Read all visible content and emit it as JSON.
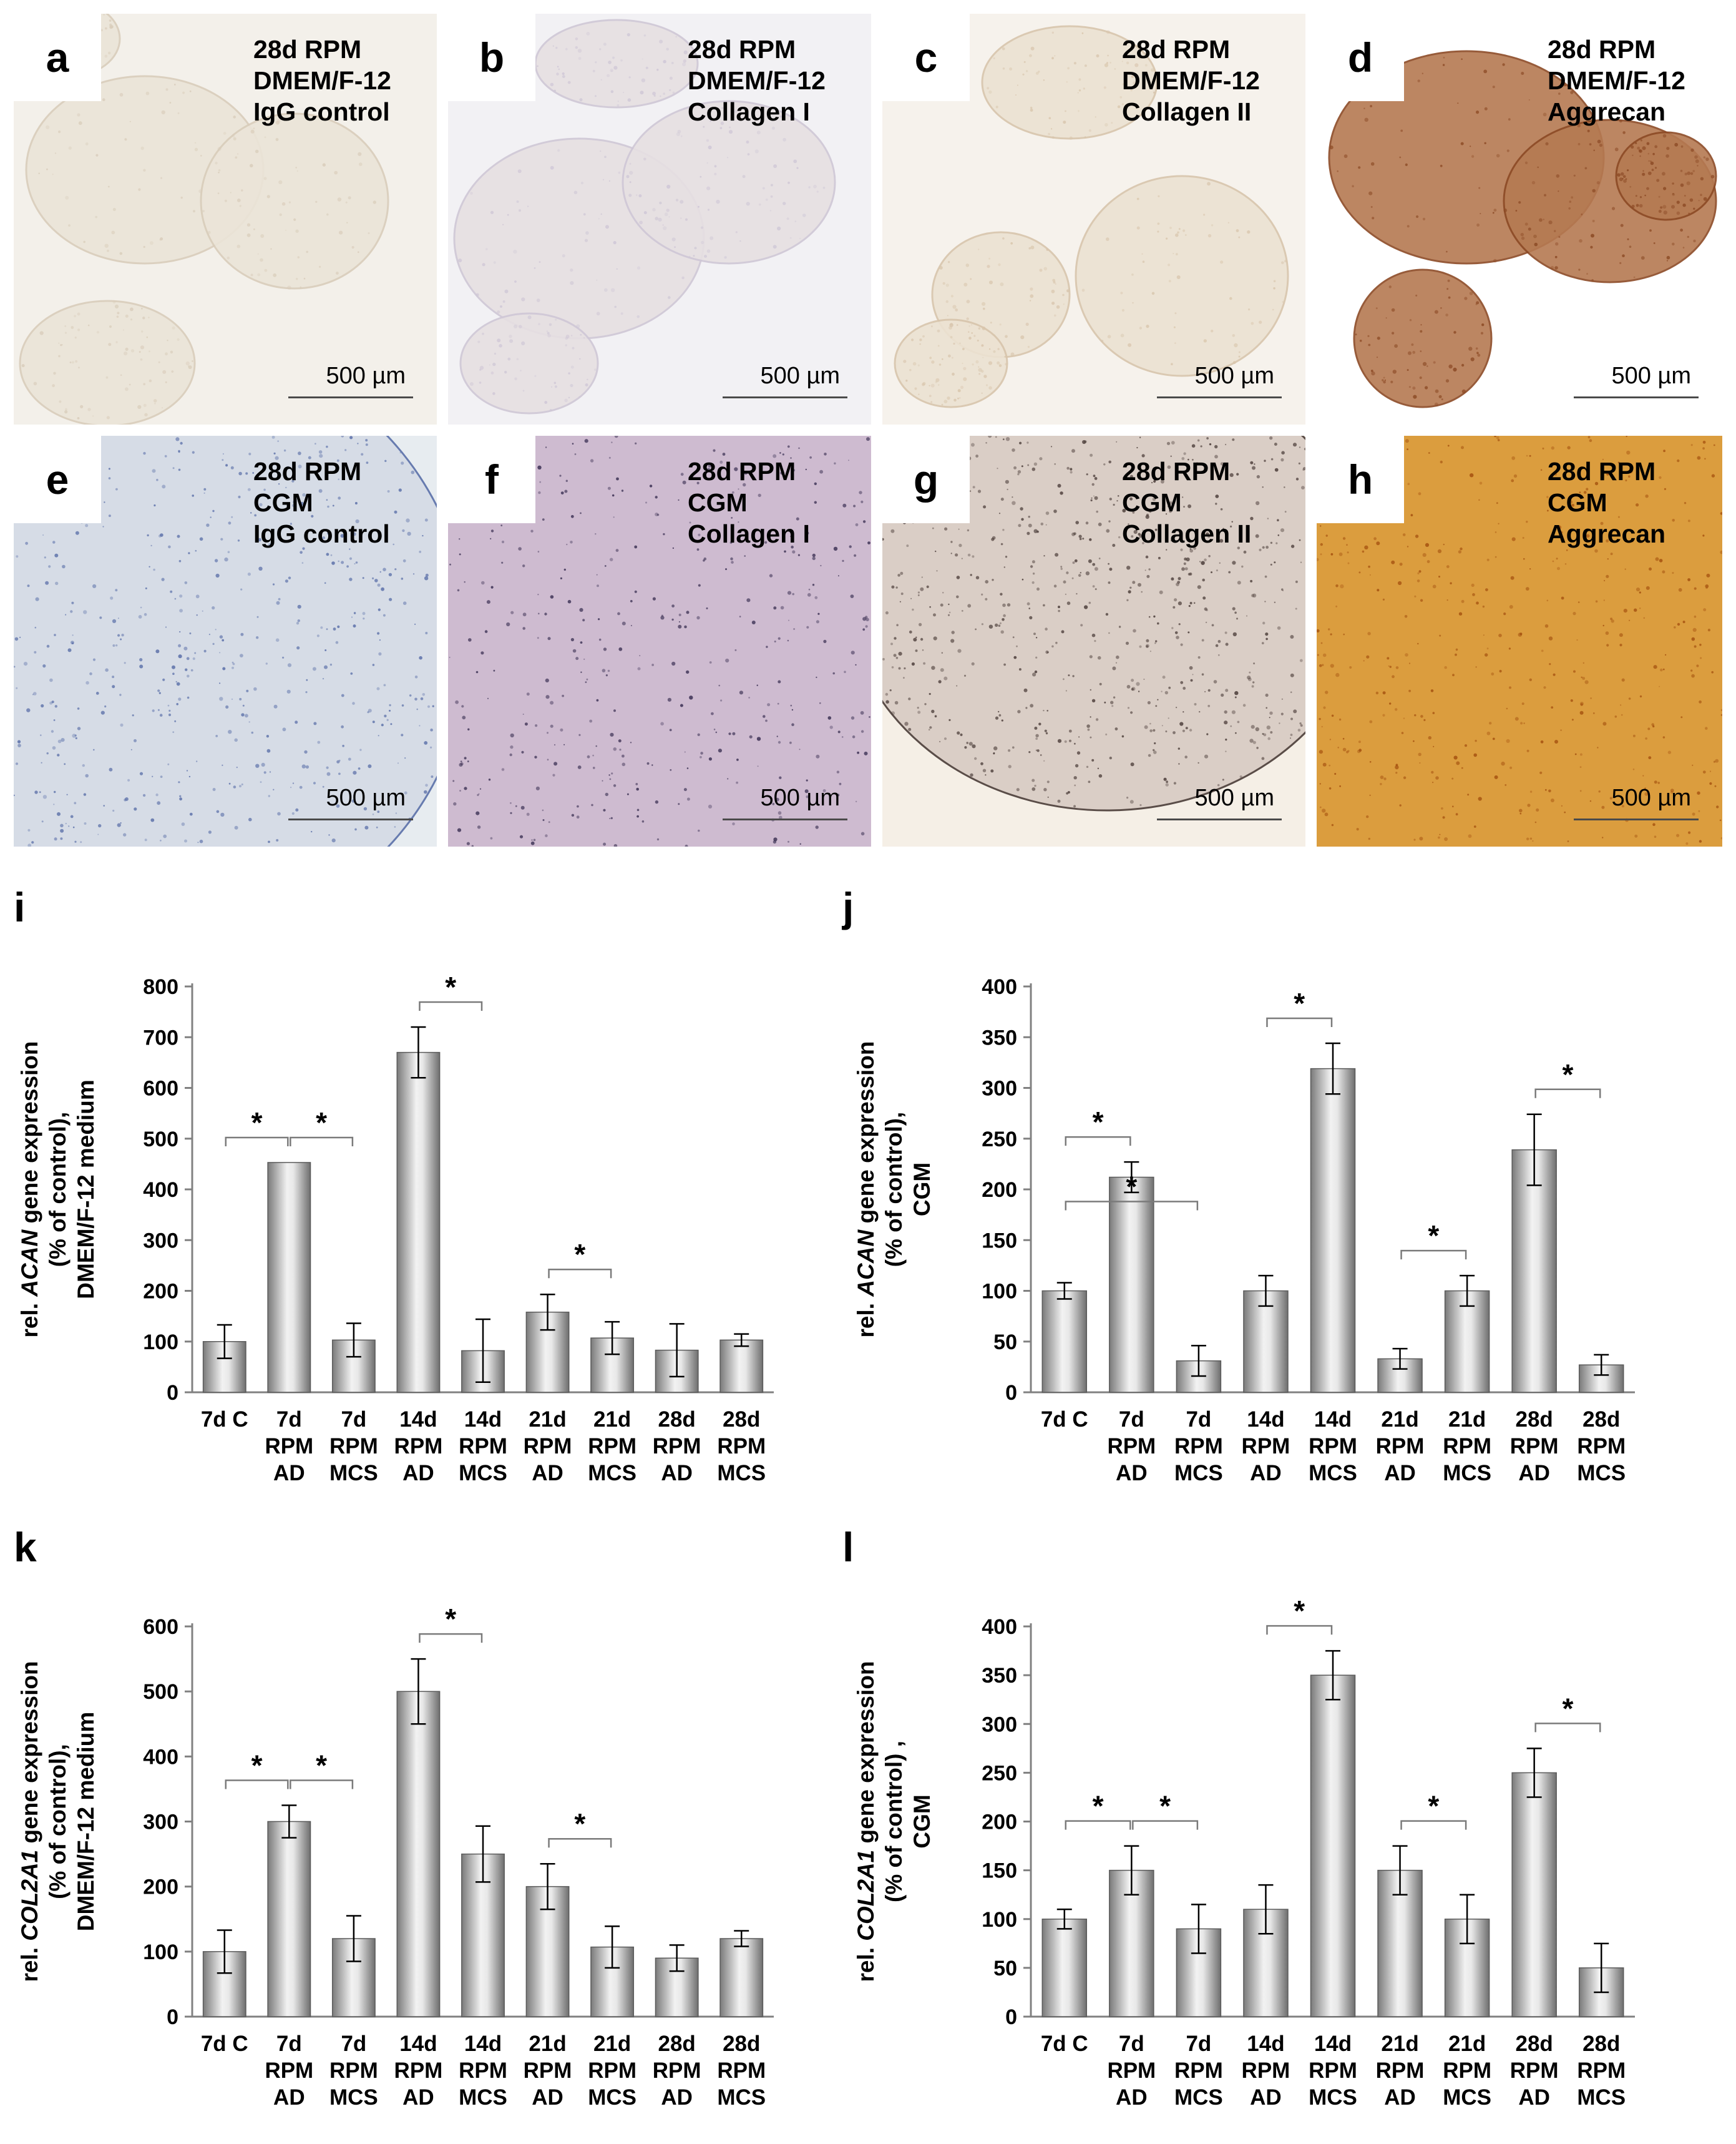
{
  "panels": [
    {
      "letter": "a",
      "lines": [
        "28d RPM",
        "DMEM/F-12",
        "IgG control"
      ],
      "scale": "500 µm",
      "style": "bg:#f3f0ea;stain:#d9cdbb;blob:#ebe4d8"
    },
    {
      "letter": "b",
      "lines": [
        "28d RPM",
        "DMEM/F-12",
        "Collagen I"
      ],
      "scale": "500 µm",
      "style": "bg:#f2f1f4;stain:#cfc7d6;blob:#e6e0e2"
    },
    {
      "letter": "c",
      "lines": [
        "28d RPM",
        "DMEM/F-12",
        "Collagen II"
      ],
      "scale": "500 µm",
      "style": "bg:#f6f2ec;stain:#d8c5ac;blob:#ece2d2"
    },
    {
      "letter": "d",
      "lines": [
        "28d RPM",
        "DMEM/F-12",
        "Aggrecan"
      ],
      "scale": "500 µm",
      "style": "bg:#ffffff;stain:#8c4a25;blob:#b57a52"
    },
    {
      "letter": "e",
      "lines": [
        "28d RPM",
        "CGM",
        "IgG control"
      ],
      "scale": "500 µm",
      "style": "bg:#e7ecf0;stain:#5a6fa8;blob:#d5dbe6"
    },
    {
      "letter": "f",
      "lines": [
        "28d RPM",
        "CGM",
        "Collagen I"
      ],
      "scale": "500 µm",
      "style": "bg:#ffffff;stain:#3a2f52;blob:#c9b4cb"
    },
    {
      "letter": "g",
      "lines": [
        "28d RPM",
        "CGM",
        "Collagen II"
      ],
      "scale": "500 µm",
      "style": "bg:#f5efe6;stain:#4a3c38;blob:#d8cbc3"
    },
    {
      "letter": "h",
      "lines": [
        "28d RPM",
        "CGM",
        "Aggrecan"
      ],
      "scale": "500 µm",
      "style": "bg:#ffffff;stain:#a5510f;blob:#d8932a"
    }
  ],
  "chart_data": [
    {
      "letter": "i",
      "type": "bar",
      "ylabel_parts": [
        "rel. ",
        "ACAN",
        " gene expression"
      ],
      "ylabel_lines": [
        "(% of control),",
        "DMEM/F-12 medium"
      ],
      "ylim": [
        0,
        800
      ],
      "yticks": [
        0,
        100,
        200,
        300,
        400,
        500,
        600,
        700,
        800
      ],
      "categories": [
        [
          "7d C"
        ],
        [
          "7d",
          "RPM",
          "AD"
        ],
        [
          "7d",
          "RPM",
          "MCS"
        ],
        [
          "14d",
          "RPM",
          "AD"
        ],
        [
          "14d",
          "RPM",
          "MCS"
        ],
        [
          "21d",
          "RPM",
          "AD"
        ],
        [
          "21d",
          "RPM",
          "MCS"
        ],
        [
          "28d",
          "RPM",
          "AD"
        ],
        [
          "28d",
          "RPM",
          "MCS"
        ]
      ],
      "values": [
        100,
        453,
        103,
        670,
        82,
        158,
        107,
        83,
        103
      ],
      "errors": [
        33,
        0,
        33,
        50,
        62,
        35,
        32,
        52,
        12
      ],
      "significance": [
        {
          "from": 0,
          "to": 1,
          "label": "*"
        },
        {
          "from": 1,
          "to": 2,
          "label": "*"
        },
        {
          "from": 3,
          "to": 4,
          "label": "*"
        },
        {
          "from": 5,
          "to": 6,
          "label": "*"
        }
      ]
    },
    {
      "letter": "j",
      "type": "bar",
      "ylabel_parts": [
        "rel. ",
        "ACAN",
        " gene expression"
      ],
      "ylabel_lines": [
        "(% of control),",
        "CGM"
      ],
      "ylim": [
        0,
        400
      ],
      "yticks": [
        0,
        50,
        100,
        150,
        200,
        250,
        300,
        350,
        400
      ],
      "categories": [
        [
          "7d C"
        ],
        [
          "7d",
          "RPM",
          "AD"
        ],
        [
          "7d",
          "RPM",
          "MCS"
        ],
        [
          "14d",
          "RPM",
          "AD"
        ],
        [
          "14d",
          "RPM",
          "MCS"
        ],
        [
          "21d",
          "RPM",
          "AD"
        ],
        [
          "21d",
          "RPM",
          "MCS"
        ],
        [
          "28d",
          "RPM",
          "AD"
        ],
        [
          "28d",
          "RPM",
          "MCS"
        ]
      ],
      "values": [
        100,
        212,
        31,
        100,
        319,
        33,
        100,
        239,
        27
      ],
      "errors": [
        8,
        15,
        15,
        15,
        25,
        10,
        15,
        35,
        10
      ],
      "significance": [
        {
          "from": 0,
          "to": 1,
          "label": "*"
        },
        {
          "from": 0,
          "to": 2,
          "label": "*"
        },
        {
          "from": 3,
          "to": 4,
          "label": "*"
        },
        {
          "from": 5,
          "to": 6,
          "label": "*"
        },
        {
          "from": 7,
          "to": 8,
          "label": "*"
        }
      ]
    },
    {
      "letter": "k",
      "type": "bar",
      "ylabel_parts": [
        "rel. ",
        "COL2A1",
        " gene expression"
      ],
      "ylabel_lines": [
        "(% of control),",
        "DMEM/F-12 medium"
      ],
      "ylim": [
        0,
        600
      ],
      "yticks": [
        0,
        100,
        200,
        300,
        400,
        500,
        600
      ],
      "categories": [
        [
          "7d C"
        ],
        [
          "7d",
          "RPM",
          "AD"
        ],
        [
          "7d",
          "RPM",
          "MCS"
        ],
        [
          "14d",
          "RPM",
          "AD"
        ],
        [
          "14d",
          "RPM",
          "MCS"
        ],
        [
          "21d",
          "RPM",
          "AD"
        ],
        [
          "21d",
          "RPM",
          "MCS"
        ],
        [
          "28d",
          "RPM",
          "AD"
        ],
        [
          "28d",
          "RPM",
          "MCS"
        ]
      ],
      "values": [
        100,
        300,
        120,
        500,
        250,
        200,
        107,
        90,
        120
      ],
      "errors": [
        33,
        25,
        35,
        50,
        43,
        35,
        32,
        20,
        12
      ],
      "significance": [
        {
          "from": 0,
          "to": 1,
          "label": "*"
        },
        {
          "from": 1,
          "to": 2,
          "label": "*"
        },
        {
          "from": 3,
          "to": 4,
          "label": "*"
        },
        {
          "from": 5,
          "to": 6,
          "label": "*"
        }
      ]
    },
    {
      "letter": "l",
      "type": "bar",
      "ylabel_parts": [
        "rel. ",
        "COL2A1",
        " gene expression"
      ],
      "ylabel_lines": [
        "(% of control) ,",
        "CGM"
      ],
      "ylim": [
        0,
        400
      ],
      "yticks": [
        0,
        50,
        100,
        150,
        200,
        250,
        300,
        350,
        400
      ],
      "categories": [
        [
          "7d C"
        ],
        [
          "7d",
          "RPM",
          "AD"
        ],
        [
          "7d",
          "RPM",
          "MCS"
        ],
        [
          "14d",
          "RPM",
          "AD"
        ],
        [
          "14d",
          "RPM",
          "MCS"
        ],
        [
          "21d",
          "RPM",
          "AD"
        ],
        [
          "21d",
          "RPM",
          "MCS"
        ],
        [
          "28d",
          "RPM",
          "AD"
        ],
        [
          "28d",
          "RPM",
          "MCS"
        ]
      ],
      "values": [
        100,
        150,
        90,
        110,
        350,
        150,
        100,
        250,
        50
      ],
      "errors": [
        10,
        25,
        25,
        25,
        25,
        25,
        25,
        25,
        25
      ],
      "significance": [
        {
          "from": 0,
          "to": 1,
          "label": "*"
        },
        {
          "from": 1,
          "to": 2,
          "label": "*"
        },
        {
          "from": 3,
          "to": 4,
          "label": "*"
        },
        {
          "from": 5,
          "to": 6,
          "label": "*"
        },
        {
          "from": 7,
          "to": 8,
          "label": "*"
        }
      ]
    }
  ]
}
